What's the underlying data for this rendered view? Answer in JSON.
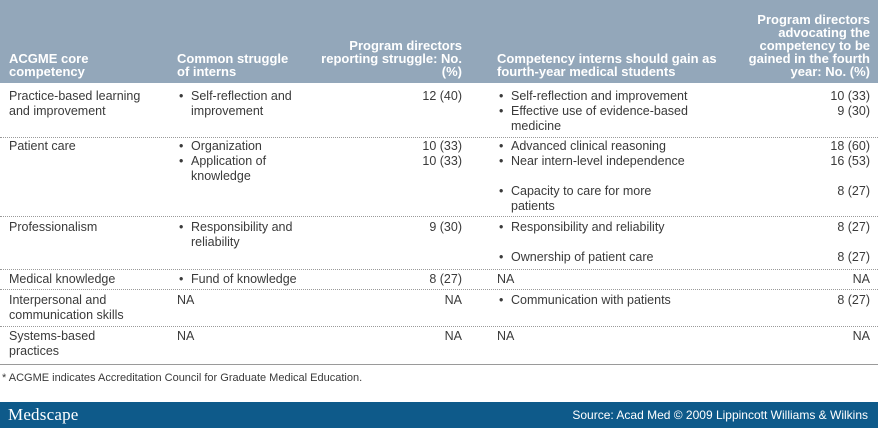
{
  "headers": {
    "col1": "ACGME core competency",
    "col2": "Common struggle of interns",
    "col3": "Program directors reporting struggle: No. (%)",
    "col4": "Competency interns should gain as fourth-year medical students",
    "col5": "Program directors advocating the competency to be gained in the fourth year: No. (%)"
  },
  "rows": [
    {
      "competency": "Practice-based learning and improvement",
      "struggles": [
        "Self-reflection and improvement"
      ],
      "struggle_counts": [
        "12 (40)"
      ],
      "gains": [
        "Self-reflection and improvement",
        "Effective use of evidence-based medicine"
      ],
      "gain_counts": [
        "10 (33)",
        "9 (30)"
      ]
    },
    {
      "competency": "Patient care",
      "struggles": [
        "Organization",
        "Application of knowledge"
      ],
      "struggle_counts": [
        "10 (33)",
        "10 (33)"
      ],
      "gains": [
        "Advanced clinical reasoning",
        "Near intern-level independence",
        "Capacity to care for more patients"
      ],
      "gain_counts": [
        "18 (60)",
        "16 (53)",
        "8 (27)"
      ]
    },
    {
      "competency": "Professionalism",
      "struggles": [
        "Responsibility and reliability"
      ],
      "struggle_counts": [
        "9 (30)"
      ],
      "gains": [
        "Responsibility and reliability",
        "Ownership of patient care"
      ],
      "gain_counts": [
        "8 (27)",
        "8 (27)"
      ]
    },
    {
      "competency": "Medical knowledge",
      "struggles": [
        "Fund of knowledge"
      ],
      "struggle_counts": [
        "8 (27)"
      ],
      "gains_na": "NA",
      "gain_counts": [
        "NA"
      ]
    },
    {
      "competency": "Interpersonal and communication skills",
      "struggles_na": "NA",
      "struggle_counts": [
        "NA"
      ],
      "gains": [
        "Communication with patients"
      ],
      "gain_counts": [
        "8 (27)"
      ]
    },
    {
      "competency": "Systems-based practices",
      "struggles_na": "NA",
      "struggle_counts": [
        "NA"
      ],
      "gains_na": "NA",
      "gain_counts": [
        "NA"
      ]
    }
  ],
  "footnote": "* ACGME indicates Accreditation Council for Graduate Medical Education.",
  "footer": {
    "logo": "Medscape",
    "source": "Source: Acad Med © 2009 Lippincott Williams & Wilkins"
  }
}
